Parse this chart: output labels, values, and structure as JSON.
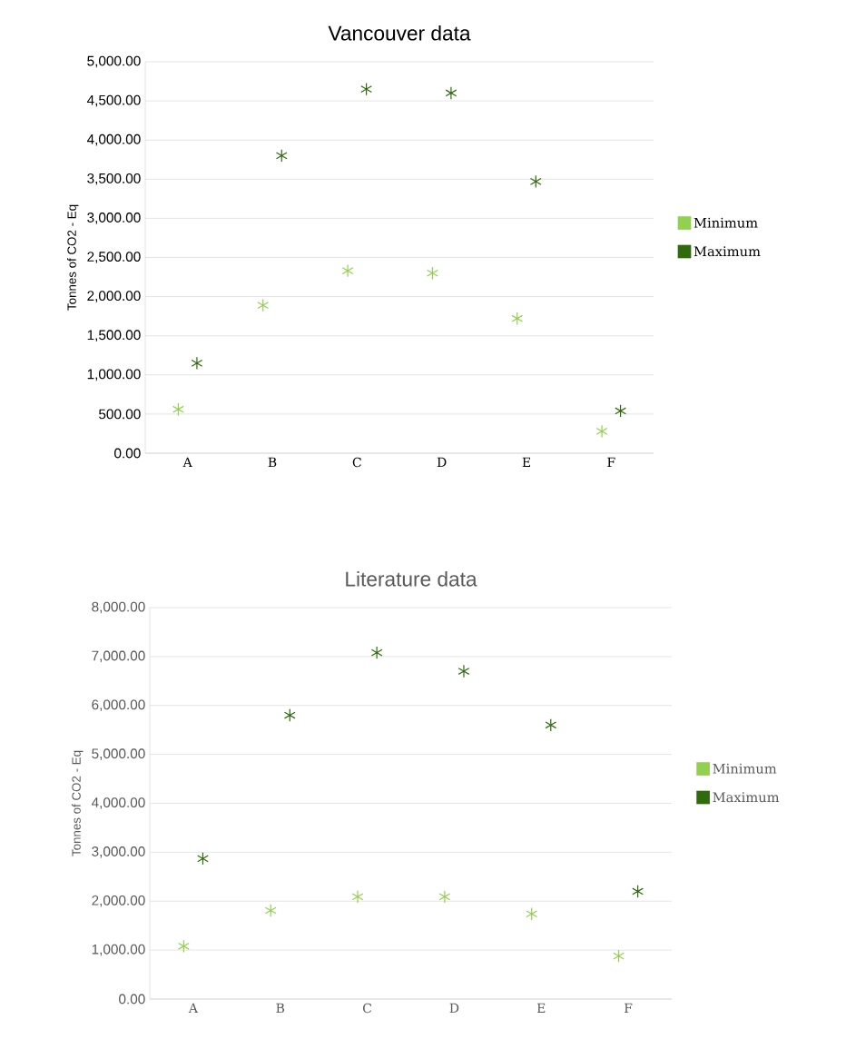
{
  "chart_data": [
    {
      "type": "scatter",
      "title": "Vancouver data",
      "ylabel": "Tonnes of CO2 - Eq",
      "categories": [
        "A",
        "B",
        "C",
        "D",
        "E",
        "F"
      ],
      "series": [
        {
          "name": "Minimum",
          "color": "#92d050",
          "values": [
            560,
            1890,
            2330,
            2300,
            1720,
            280
          ]
        },
        {
          "name": "Maximum",
          "color": "#2f6b0c",
          "values": [
            1150,
            3800,
            4650,
            4600,
            3470,
            540
          ]
        }
      ],
      "ylim": [
        0,
        5000
      ],
      "yticks": [
        {
          "value": 0,
          "label": "0.00"
        },
        {
          "value": 500,
          "label": "500.00"
        },
        {
          "value": 1000,
          "label": "1,000.00"
        },
        {
          "value": 1500,
          "label": "1,500.00"
        },
        {
          "value": 2000,
          "label": "2,000.00"
        },
        {
          "value": 2500,
          "label": "2,500.00"
        },
        {
          "value": 3000,
          "label": "3,000.00"
        },
        {
          "value": 3500,
          "label": "3,500.00"
        },
        {
          "value": 4000,
          "label": "4,000.00"
        },
        {
          "value": 4500,
          "label": "4,500.00"
        },
        {
          "value": 5000,
          "label": "5,000.00"
        }
      ],
      "grid": "y",
      "legend": "right",
      "marker": "cross"
    },
    {
      "type": "scatter",
      "title": "Literature data",
      "ylabel": "Tonnes of CO2 - Eq",
      "categories": [
        "A",
        "B",
        "C",
        "D",
        "E",
        "F"
      ],
      "series": [
        {
          "name": "Minimum",
          "color": "#92d050",
          "values": [
            1080,
            1810,
            2090,
            2090,
            1740,
            880
          ]
        },
        {
          "name": "Maximum",
          "color": "#2f6b0c",
          "values": [
            2870,
            5800,
            7080,
            6700,
            5600,
            2200
          ]
        }
      ],
      "ylim": [
        0,
        8000
      ],
      "yticks": [
        {
          "value": 0,
          "label": "0.00"
        },
        {
          "value": 1000,
          "label": "1,000.00"
        },
        {
          "value": 2000,
          "label": "2,000.00"
        },
        {
          "value": 3000,
          "label": "3,000.00"
        },
        {
          "value": 4000,
          "label": "4,000.00"
        },
        {
          "value": 5000,
          "label": "5,000.00"
        },
        {
          "value": 6000,
          "label": "6,000.00"
        },
        {
          "value": 7000,
          "label": "7,000.00"
        },
        {
          "value": 8000,
          "label": "8,000.00"
        }
      ],
      "grid": "y",
      "legend": "right",
      "marker": "cross"
    }
  ]
}
